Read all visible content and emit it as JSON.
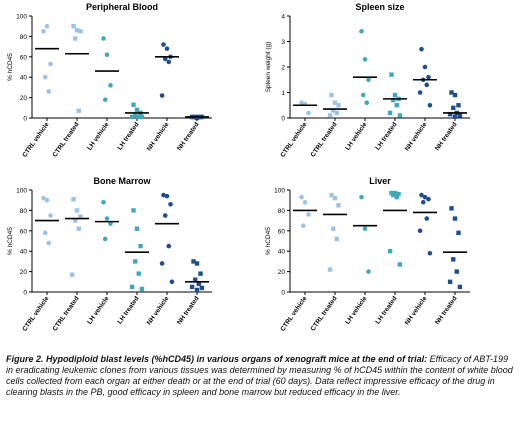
{
  "colors": {
    "ctrl": "#9cc3e6",
    "lh": "#3fa9b8",
    "nh": "#1f4e8c",
    "median": "#000000",
    "axis": "#000000"
  },
  "chart_data": [
    {
      "type": "scatter",
      "title": "Peripheral Blood",
      "ylabel": "% hCD45",
      "ylim": [
        0,
        100
      ],
      "yticks": [
        "0",
        "20",
        "40",
        "60",
        "80",
        "100"
      ],
      "categories": [
        "CTRL vehicle",
        "CTRL treated",
        "LH vehicle",
        "LH treated",
        "NH vehicle",
        "NH treated"
      ],
      "points": [
        [
          85,
          90,
          53,
          40,
          26
        ],
        [
          90,
          86,
          85,
          78,
          7
        ],
        [
          78,
          62,
          32,
          18
        ],
        [
          13,
          8,
          5,
          3,
          1,
          1,
          1
        ],
        [
          72,
          68,
          60,
          58,
          55,
          22
        ],
        [
          1,
          1,
          1,
          1,
          1,
          1,
          1,
          0
        ]
      ],
      "medians": [
        68,
        63,
        46,
        5,
        60,
        1
      ]
    },
    {
      "type": "scatter",
      "title": "Spleen size",
      "ylabel": "Spleen weight (g)",
      "ylim": [
        0,
        4
      ],
      "yticks": [
        "0",
        "1",
        "2",
        "3",
        "4"
      ],
      "categories": [
        "CTRL vehicle",
        "CTRL treated",
        "LH vehicle",
        "LH treated",
        "NH vehicle",
        "NH treated"
      ],
      "points": [
        [
          0.6,
          0.55,
          0.2
        ],
        [
          0.9,
          0.6,
          0.5,
          0.3,
          0.2,
          0.1
        ],
        [
          3.4,
          2.3,
          1.5,
          0.9,
          0.6
        ],
        [
          1.7,
          0.9,
          0.75,
          0.7,
          0.5,
          0.2,
          0.1
        ],
        [
          2.7,
          2.0,
          1.6,
          1.5,
          1.3,
          1.0,
          0.5
        ],
        [
          1.0,
          0.9,
          0.5,
          0.4,
          0.2,
          0.15,
          0.1,
          0.05
        ]
      ],
      "medians": [
        0.5,
        0.35,
        1.6,
        0.75,
        1.5,
        0.2
      ]
    },
    {
      "type": "scatter",
      "title": "Bone Marrow",
      "ylabel": "% hCD45",
      "ylim": [
        0,
        100
      ],
      "yticks": [
        "0",
        "20",
        "40",
        "60",
        "80",
        "100"
      ],
      "categories": [
        "CTRL vehicle",
        "CTRL treated",
        "LH vehicle",
        "LH treated",
        "NH vehicle",
        "NH treated"
      ],
      "points": [
        [
          92,
          90,
          75,
          58,
          48
        ],
        [
          91,
          80,
          74,
          70,
          62,
          17
        ],
        [
          88,
          72,
          67,
          52
        ],
        [
          80,
          62,
          45,
          30,
          18,
          5,
          3
        ],
        [
          95,
          94,
          86,
          75,
          45,
          28,
          10
        ],
        [
          30,
          28,
          18,
          12,
          8,
          5,
          4,
          2
        ]
      ],
      "medians": [
        70,
        72,
        69,
        39,
        67,
        10
      ]
    },
    {
      "type": "scatter",
      "title": "Liver",
      "ylabel": "% hCD45",
      "ylim": [
        0,
        100
      ],
      "yticks": [
        "0",
        "20",
        "40",
        "60",
        "80",
        "100"
      ],
      "categories": [
        "CTRL vehicle",
        "CTRL treated",
        "LH vehicle",
        "LH treated",
        "NH vehicle",
        "NH treated"
      ],
      "points": [
        [
          93,
          88,
          76,
          65
        ],
        [
          95,
          92,
          85,
          62,
          52,
          22
        ],
        [
          93,
          62,
          20
        ],
        [
          97,
          97,
          96,
          95,
          93,
          40,
          27
        ],
        [
          95,
          93,
          91,
          88,
          72,
          60,
          38
        ],
        [
          82,
          72,
          58,
          32,
          20,
          10,
          5
        ]
      ],
      "medians": [
        80,
        76,
        65,
        80,
        78,
        39
      ]
    }
  ],
  "caption": {
    "title": "Figure 2. Hypodiploid blast levels (%hCD45) in various organs of xenograft mice at the end of trial:",
    "body": " Efficacy of ABT-199 in eradicating leukemic clones from various tissues was determined by measuring % of hCD45 within the content of white blood cells collected from each organ at either death or at the end of trial (60 days). Data reflect impressive efficacy of the drug in clearing blasts in the PB, good efficacy in spleen and bone marrow but reduced efficacy in the liver."
  }
}
